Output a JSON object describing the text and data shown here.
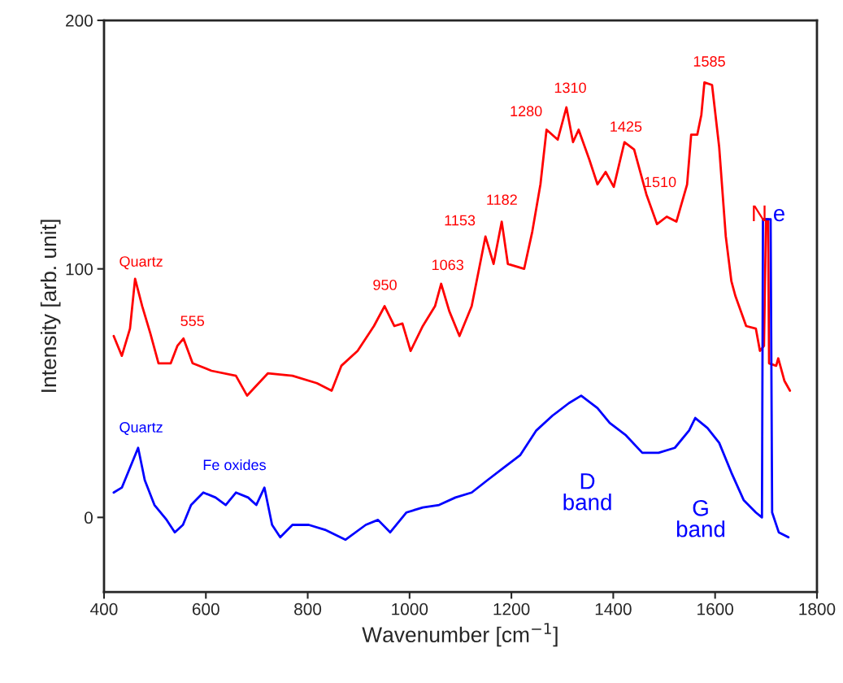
{
  "chart_data": {
    "type": "line",
    "xlabel": "Wavenumber [cm$^{−1}$]",
    "ylabel": "Intensity [arb. unit]",
    "xlim": [
      400,
      1800
    ],
    "ylim": [
      -30,
      200
    ],
    "xticks": [
      400,
      600,
      800,
      1000,
      1200,
      1400,
      1600,
      1800
    ],
    "yticks": [
      0,
      100,
      200
    ],
    "grid": false,
    "marker": "none",
    "line_style": "solid",
    "series": [
      {
        "color": "#ff0000",
        "x": [
          419,
          435,
          451,
          461,
          475,
          491,
          507,
          531,
          544,
          556,
          574,
          611,
          659,
          681,
          722,
          770,
          818,
          847,
          866,
          898,
          930,
          951,
          970,
          986,
          1002,
          1026,
          1050,
          1062,
          1078,
          1098,
          1122,
          1149,
          1165,
          1181,
          1193,
          1225,
          1241,
          1257,
          1269,
          1291,
          1308,
          1321,
          1332,
          1353,
          1369,
          1385,
          1401,
          1422,
          1441,
          1465,
          1486,
          1505,
          1524,
          1545,
          1553,
          1565,
          1573,
          1579,
          1594,
          1608,
          1621,
          1632,
          1640,
          1661,
          1680,
          1688,
          1696,
          1700,
          1704,
          1706,
          1720,
          1724,
          1736,
          1747
        ],
        "values": [
          73,
          65,
          76,
          96,
          85,
          74,
          62,
          62,
          69,
          72,
          62,
          59,
          57,
          49,
          58,
          57,
          54,
          51,
          61,
          67,
          77,
          85,
          77,
          78,
          67,
          77,
          85,
          94,
          83,
          73,
          85,
          113,
          102,
          119,
          102,
          100,
          115,
          134,
          156,
          152,
          165,
          151,
          156,
          144,
          134,
          139,
          133,
          151,
          148,
          130,
          118,
          121,
          119,
          134,
          154,
          154,
          162,
          175,
          174,
          149,
          113,
          95,
          89,
          77,
          76,
          67,
          69,
          120,
          120,
          62,
          61,
          64,
          55,
          51
        ]
      },
      {
        "color": "#0000ff",
        "x": [
          419,
          435,
          451,
          467,
          480,
          499,
          523,
          539,
          555,
          571,
          595,
          619,
          639,
          659,
          683,
          699,
          715,
          730,
          746,
          770,
          802,
          834,
          874,
          914,
          938,
          962,
          994,
          1026,
          1058,
          1090,
          1122,
          1153,
          1185,
          1217,
          1249,
          1281,
          1313,
          1337,
          1369,
          1393,
          1425,
          1457,
          1489,
          1521,
          1549,
          1561,
          1585,
          1608,
          1632,
          1656,
          1680,
          1692,
          1694,
          1709,
          1712,
          1725,
          1744
        ],
        "values": [
          10,
          12,
          20,
          28,
          15,
          5,
          -1,
          -6,
          -3,
          5,
          10,
          8,
          5,
          10,
          8,
          5,
          12,
          -3,
          -8,
          -3,
          -3,
          -5,
          -9,
          -3,
          -1,
          -6,
          2,
          4,
          5,
          8,
          10,
          15,
          20,
          25,
          35,
          41,
          46,
          49,
          44,
          38,
          33,
          26,
          26,
          28,
          35,
          40,
          36,
          30,
          18,
          7,
          2,
          0,
          120,
          120,
          2,
          -6,
          -8
        ]
      }
    ],
    "annotations": [
      "Quartz",
      "555",
      "950",
      "1063",
      "1153",
      "1182",
      "1280",
      "1310",
      "1425",
      "1510",
      "1585",
      "N",
      "e",
      "Quartz",
      "Fe oxides",
      "D\nband",
      "G\nband"
    ]
  }
}
